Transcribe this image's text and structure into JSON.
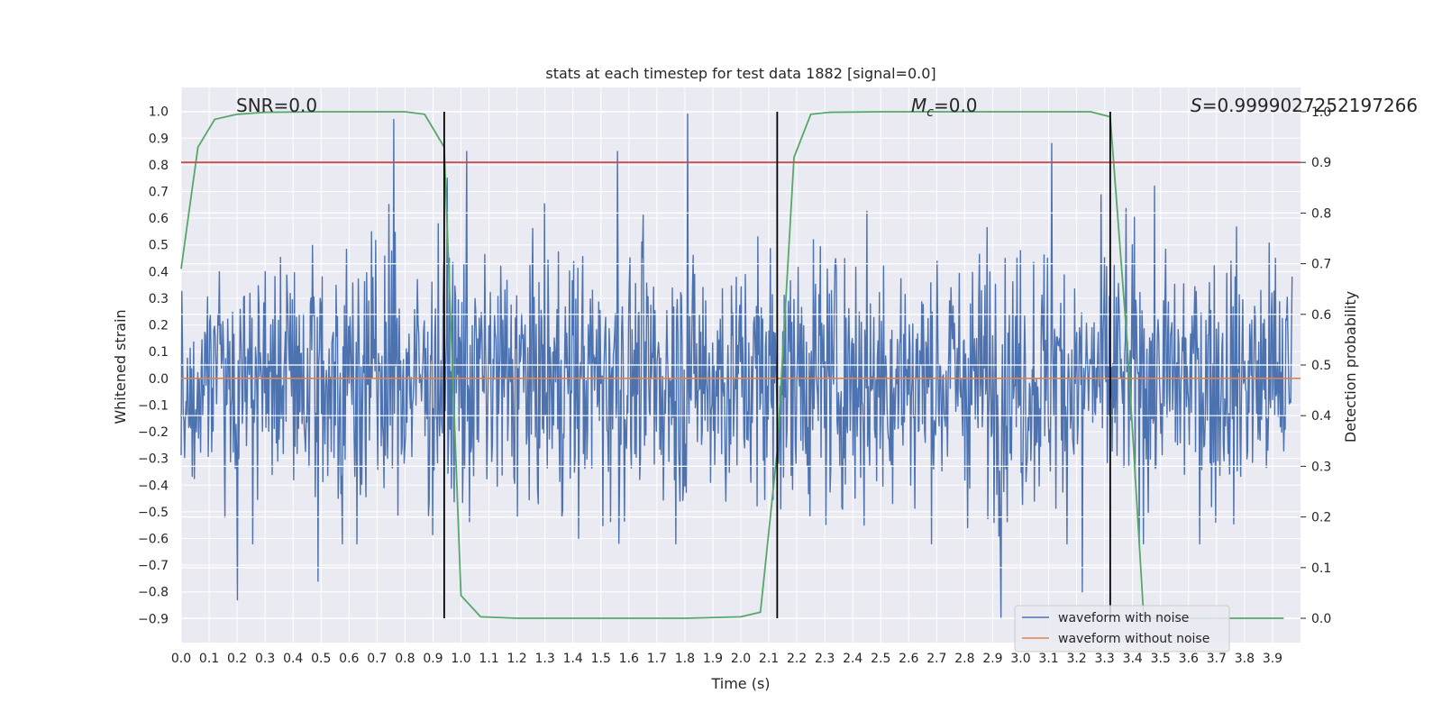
{
  "chart_data": {
    "type": "line",
    "title": "stats at each timestep for test data 1882 [signal=0.0]",
    "xlabel": "Time (s)",
    "ylabel": "Whitened strain",
    "y2label": "Detection probability",
    "xlim": [
      0.0,
      4.0
    ],
    "ylim": [
      -0.99,
      1.09
    ],
    "y2lim": [
      -0.048,
      1.048
    ],
    "x_ticks": [
      "0.0",
      "0.1",
      "0.2",
      "0.3",
      "0.4",
      "0.5",
      "0.6",
      "0.7",
      "0.8",
      "0.9",
      "1.0",
      "1.1",
      "1.2",
      "1.3",
      "1.4",
      "1.5",
      "1.6",
      "1.7",
      "1.8",
      "1.9",
      "2.0",
      "2.1",
      "2.2",
      "2.3",
      "2.4",
      "2.5",
      "2.6",
      "2.7",
      "2.8",
      "2.9",
      "3.0",
      "3.1",
      "3.2",
      "3.3",
      "3.4",
      "3.5",
      "3.6",
      "3.7",
      "3.8",
      "3.9"
    ],
    "y_ticks": [
      "−0.9",
      "−0.8",
      "−0.7",
      "−0.6",
      "−0.5",
      "−0.4",
      "−0.3",
      "−0.2",
      "−0.1",
      "0.0",
      "0.1",
      "0.2",
      "0.3",
      "0.4",
      "0.5",
      "0.6",
      "0.7",
      "0.8",
      "0.9",
      "1.0"
    ],
    "y2_ticks": [
      "0.0",
      "0.1",
      "0.2",
      "0.3",
      "0.4",
      "0.5",
      "0.6",
      "0.7",
      "0.8",
      "0.9",
      "1.0"
    ],
    "annotations": {
      "snr": "SNR=0.0",
      "mc_symbol": "M",
      "mc_sub": "c",
      "mc_value": "=0.0",
      "s_symbol": "S",
      "s_value": "=0.9999027252197266"
    },
    "series": [
      {
        "name": "waveform with noise",
        "axis": "left",
        "color": "#4c72b0",
        "note": "dense noise trace spanning roughly −0.9 to 1.0",
        "peaks": [
          {
            "x": 0.76,
            "y": 0.97
          },
          {
            "x": 1.81,
            "y": 0.99
          },
          {
            "x": 3.11,
            "y": 0.88
          },
          {
            "x": 1.02,
            "y": 0.85
          },
          {
            "x": 1.56,
            "y": 0.85
          },
          {
            "x": 0.95,
            "y": 0.75
          },
          {
            "x": 2.93,
            "y": -0.9
          },
          {
            "x": 0.2,
            "y": -0.83
          },
          {
            "x": 0.49,
            "y": -0.76
          },
          {
            "x": 3.22,
            "y": -0.8
          }
        ]
      },
      {
        "name": "waveform without noise",
        "axis": "left",
        "color": "#dd8452",
        "x": [
          0.0,
          4.0
        ],
        "y": [
          0.0,
          0.0
        ]
      },
      {
        "axis": "right",
        "color": "#55a868",
        "x": [
          0.0,
          0.06,
          0.12,
          0.2,
          0.3,
          0.5,
          0.7,
          0.8,
          0.87,
          0.94,
          1.0,
          1.07,
          1.2,
          1.5,
          1.8,
          2.0,
          2.07,
          2.13,
          2.19,
          2.25,
          2.32,
          2.5,
          2.8,
          3.1,
          3.25,
          3.32,
          3.38,
          3.44,
          3.6,
          3.8,
          3.94
        ],
        "y": [
          0.69,
          0.93,
          0.985,
          0.995,
          0.999,
          1.0,
          1.0,
          1.0,
          0.995,
          0.93,
          0.045,
          0.003,
          0.0,
          0.0,
          0.0,
          0.003,
          0.012,
          0.33,
          0.91,
          0.995,
          0.999,
          1.0,
          1.0,
          1.0,
          1.0,
          0.99,
          0.55,
          0.0,
          0.0,
          0.0,
          0.0
        ]
      },
      {
        "axis": "right",
        "color": "#c44e52",
        "x": [
          0.0,
          4.0
        ],
        "y": [
          0.9,
          0.9
        ]
      },
      {
        "axis": "right",
        "color": "#000000",
        "x": [
          0.94,
          0.94,
          null,
          2.13,
          2.13,
          null,
          3.32,
          3.32
        ],
        "y": [
          0.0,
          1.0,
          null,
          0.0,
          1.0,
          null,
          0.0,
          1.0
        ]
      }
    ],
    "grid": true,
    "legend_position": "bottom-right",
    "legend": [
      {
        "label": "waveform with noise",
        "color": "#4c72b0"
      },
      {
        "label": "waveform without noise",
        "color": "#dd8452"
      }
    ],
    "background": "#eaeaf2"
  }
}
